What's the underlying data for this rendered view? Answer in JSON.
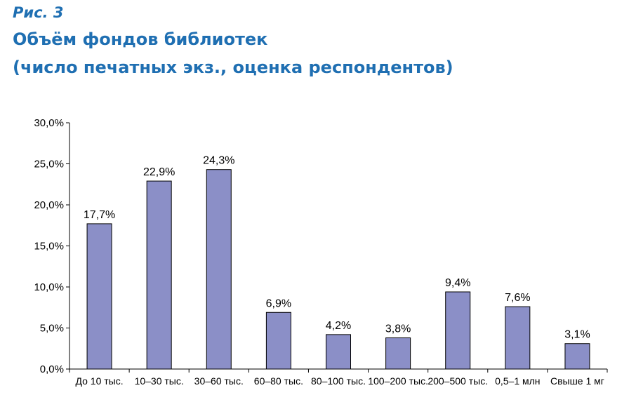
{
  "figure": {
    "label": "Рис. 3",
    "title_line1": "Объём фондов библиотек",
    "title_line2": "(число печатных экз., оценка респондентов)"
  },
  "chart_data": {
    "type": "bar",
    "categories": [
      "До 10 тыс.",
      "10–30 тыс.",
      "30–60 тыс.",
      "60–80 тыс.",
      "80–100 тыс.",
      "100–200 тыс.",
      "200–500 тыс.",
      "0,5–1 млн",
      "Свыше 1 мг"
    ],
    "values": [
      17.7,
      22.9,
      24.3,
      6.9,
      4.2,
      3.8,
      9.4,
      7.6,
      3.1
    ],
    "data_labels": [
      "17,7%",
      "22,9%",
      "24,3%",
      "6,9%",
      "4,2%",
      "3,8%",
      "9,4%",
      "7,6%",
      "3,1%"
    ],
    "y_ticks": [
      0,
      5,
      10,
      15,
      20,
      25,
      30
    ],
    "y_tick_labels": [
      "0,0%",
      "5,0%",
      "10,0%",
      "15,0%",
      "20,0%",
      "25,0%",
      "30,0%"
    ],
    "ylim": [
      0,
      30
    ],
    "grid": false,
    "bar_color": "#8b8fc7",
    "bar_stroke": "#000000"
  }
}
